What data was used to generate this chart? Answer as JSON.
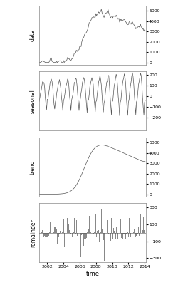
{
  "title": "",
  "xlabel": "time",
  "panel_labels": [
    "data",
    "seasonal",
    "trend",
    "remainder"
  ],
  "year_start": 2001.0,
  "year_end": 2014.17,
  "x_ticks": [
    2002,
    2004,
    2006,
    2008,
    2010,
    2012,
    2014
  ],
  "data_ylim": [
    -200,
    5500
  ],
  "data_yticks": [
    0,
    1000,
    2000,
    3000,
    4000,
    5000
  ],
  "seasonal_ylim": [
    -320,
    230
  ],
  "seasonal_yticks": [
    -200,
    -100,
    0,
    100,
    200
  ],
  "trend_ylim": [
    -200,
    5500
  ],
  "trend_yticks": [
    0,
    1000,
    2000,
    3000,
    4000,
    5000
  ],
  "remainder_ylim": [
    -350,
    350
  ],
  "remainder_yticks": [
    -300,
    -100,
    100,
    300
  ],
  "bg_color": "#ffffff",
  "line_color": "#555555",
  "bar_color": "#888888",
  "label_fontsize": 5.5,
  "tick_fontsize": 4.5
}
